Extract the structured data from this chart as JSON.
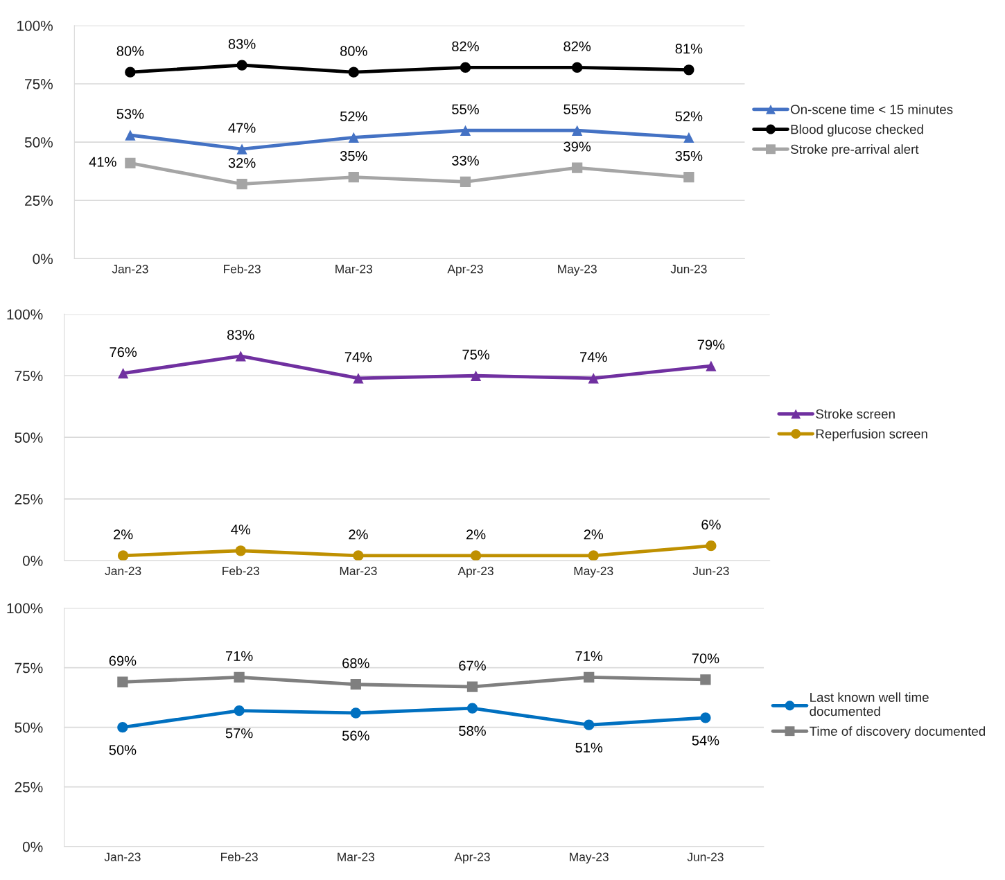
{
  "chart_data": [
    {
      "type": "line",
      "categories": [
        "Jan-23",
        "Feb-23",
        "Mar-23",
        "Apr-23",
        "May-23",
        "Jun-23"
      ],
      "series": [
        {
          "name": "On-scene time < 15 minutes",
          "color": "#4472c4",
          "marker": "triangle",
          "values": [
            53,
            47,
            52,
            55,
            55,
            52
          ],
          "value_labels": [
            "53%",
            "47%",
            "52%",
            "55%",
            "55%",
            "52%"
          ]
        },
        {
          "name": "Blood glucose checked",
          "color": "#000000",
          "marker": "circle",
          "values": [
            80,
            83,
            80,
            82,
            82,
            81
          ],
          "value_labels": [
            "80%",
            "83%",
            "80%",
            "82%",
            "82%",
            "81%"
          ]
        },
        {
          "name": "Stroke pre-arrival alert",
          "color": "#a5a5a5",
          "marker": "square",
          "values": [
            41,
            32,
            35,
            33,
            39,
            35
          ],
          "value_labels": [
            "41%",
            "32%",
            "35%",
            "33%",
            "39%",
            "35%"
          ]
        }
      ],
      "ylim": [
        0,
        100
      ],
      "yticks": [
        {
          "value": 0,
          "label": "0%"
        },
        {
          "value": 25,
          "label": "25%"
        },
        {
          "value": 50,
          "label": "50%"
        },
        {
          "value": 75,
          "label": "75%"
        },
        {
          "value": 100,
          "label": "100%"
        }
      ],
      "grid": "y",
      "legend": "right",
      "line_style": "solid"
    },
    {
      "type": "line",
      "categories": [
        "Jan-23",
        "Feb-23",
        "Mar-23",
        "Apr-23",
        "May-23",
        "Jun-23"
      ],
      "series": [
        {
          "name": "Stroke screen",
          "color": "#7030a0",
          "marker": "triangle",
          "values": [
            76,
            83,
            74,
            75,
            74,
            79
          ],
          "value_labels": [
            "76%",
            "83%",
            "74%",
            "75%",
            "74%",
            "79%"
          ]
        },
        {
          "name": "Reperfusion screen",
          "color": "#bf9000",
          "marker": "circle",
          "values": [
            2,
            4,
            2,
            2,
            2,
            6
          ],
          "value_labels": [
            "2%",
            "4%",
            "2%",
            "2%",
            "2%",
            "6%"
          ]
        }
      ],
      "ylim": [
        0,
        100
      ],
      "yticks": [
        {
          "value": 0,
          "label": "0%"
        },
        {
          "value": 25,
          "label": "25%"
        },
        {
          "value": 50,
          "label": "50%"
        },
        {
          "value": 75,
          "label": "75%"
        },
        {
          "value": 100,
          "label": "100%"
        }
      ],
      "grid": "y",
      "legend": "right",
      "line_style": "solid"
    },
    {
      "type": "line",
      "categories": [
        "Jan-23",
        "Feb-23",
        "Mar-23",
        "Apr-23",
        "May-23",
        "Jun-23"
      ],
      "series": [
        {
          "name": "Last known well time documented",
          "color": "#0070c0",
          "marker": "circle",
          "values": [
            50,
            57,
            56,
            58,
            51,
            54
          ],
          "value_labels": [
            "50%",
            "57%",
            "56%",
            "58%",
            "51%",
            "54%"
          ]
        },
        {
          "name": "Time of discovery documented",
          "color": "#7f7f7f",
          "marker": "square",
          "values": [
            69,
            71,
            68,
            67,
            71,
            70
          ],
          "value_labels": [
            "69%",
            "71%",
            "68%",
            "67%",
            "71%",
            "70%"
          ]
        }
      ],
      "ylim": [
        0,
        100
      ],
      "yticks": [
        {
          "value": 0,
          "label": "0%"
        },
        {
          "value": 25,
          "label": "25%"
        },
        {
          "value": 50,
          "label": "50%"
        },
        {
          "value": 75,
          "label": "75%"
        },
        {
          "value": 100,
          "label": "100%"
        }
      ],
      "grid": "y",
      "legend": "right",
      "line_style": "solid"
    }
  ]
}
